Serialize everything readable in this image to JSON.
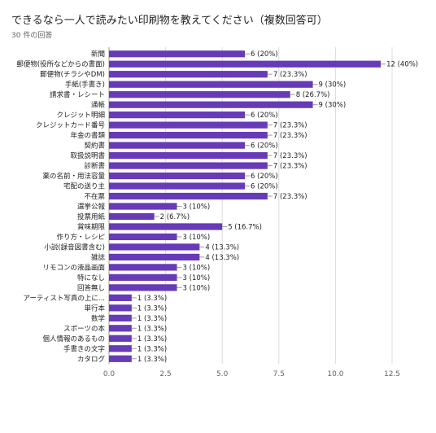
{
  "title": "できるなら一人で読みたい印刷物を教えてください（複数回答可）",
  "subtitle": "30 件の回答",
  "chart_data": {
    "type": "bar",
    "orientation": "horizontal",
    "title": "できるなら一人で読みたい印刷物を教えてください（複数回答可）",
    "categories": [
      "新聞",
      "郵便物(役所などからの書面)",
      "郵便物(チラシやDM)",
      "手紙(手書き)",
      "請求書・レシート",
      "通帳",
      "クレジット明細",
      "クレジットカード番号",
      "年金の書類",
      "契約書",
      "取扱説明書",
      "診断書",
      "薬の名前・用法容量",
      "宅配の送り主",
      "不在票",
      "選挙公報",
      "投票用紙",
      "賞味期限",
      "作り方・レシピ",
      "小説(録音図書含む)",
      "雑誌",
      "リモコンの液晶画面",
      "特になし",
      "回答無し",
      "アーティスト写真の上に...",
      "単行本",
      "数学",
      "スポーツの本",
      "個人情報のあるもの",
      "手書きの文字",
      "カタログ"
    ],
    "values": [
      6,
      12,
      7,
      9,
      8,
      9,
      6,
      7,
      7,
      6,
      7,
      7,
      6,
      6,
      7,
      3,
      2,
      5,
      3,
      4,
      4,
      3,
      3,
      3,
      1,
      1,
      1,
      1,
      1,
      1,
      1
    ],
    "data_labels": [
      "6 (20%)",
      "12 (40%)",
      "7 (23.3%)",
      "9 (30%)",
      "8 (26.7%)",
      "9 (30%)",
      "6 (20%)",
      "7 (23.3%)",
      "7 (23.3%)",
      "6 (20%)",
      "7 (23.3%)",
      "7 (23.3%)",
      "6 (20%)",
      "6 (20%)",
      "7 (23.3%)",
      "3 (10%)",
      "2 (6.7%)",
      "5 (16.7%)",
      "3 (10%)",
      "4 (13.3%)",
      "4 (13.3%)",
      "3 (10%)",
      "3 (10%)",
      "3 (10%)",
      "1 (3.3%)",
      "1 (3.3%)",
      "1 (3.3%)",
      "1 (3.3%)",
      "1 (3.3%)",
      "1 (3.3%)",
      "1 (3.3%)"
    ],
    "xlim": [
      0,
      12.5
    ],
    "x_ticks": [
      "0.0",
      "2.5",
      "5.0",
      "7.5",
      "10.0",
      "12.5"
    ],
    "grid": true,
    "bar_color": "#673ab7"
  }
}
